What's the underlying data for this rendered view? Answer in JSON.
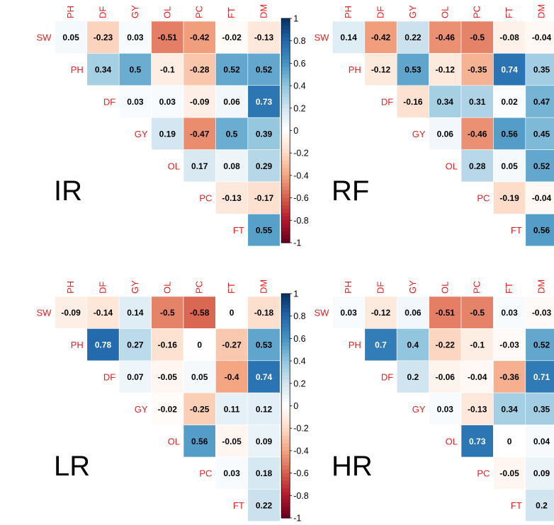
{
  "chart_data": [
    {
      "type": "heatmap",
      "title": "IR",
      "variables": [
        "SW",
        "PH",
        "DF",
        "GY",
        "OL",
        "PC",
        "FT",
        "DM"
      ],
      "rows": [
        "SW",
        "PH",
        "DF",
        "GY",
        "OL",
        "PC",
        "FT"
      ],
      "columns": [
        "PH",
        "DF",
        "GY",
        "OL",
        "PC",
        "FT",
        "DM"
      ],
      "values": [
        [
          0.05,
          -0.23,
          0.03,
          -0.51,
          -0.42,
          -0.02,
          -0.13
        ],
        [
          0.34,
          0.5,
          -0.1,
          -0.28,
          0.52,
          0.52
        ],
        [
          0.03,
          0.03,
          -0.09,
          0.06,
          0.73
        ],
        [
          0.19,
          -0.47,
          0.5,
          0.39
        ],
        [
          0.17,
          0.08,
          0.29
        ],
        [
          -0.13,
          -0.17
        ],
        [
          0.55
        ]
      ],
      "colorbar": {
        "range": [
          -1,
          1
        ],
        "ticks": [
          "1",
          "0.8",
          "0.6",
          "0.4",
          "0.2",
          "0",
          "-0.2",
          "-0.4",
          "-0.6",
          "-0.8",
          "-1"
        ]
      }
    },
    {
      "type": "heatmap",
      "title": "RF",
      "variables": [
        "SW",
        "PH",
        "DF",
        "GY",
        "OL",
        "PC",
        "FT",
        "DM"
      ],
      "rows": [
        "SW",
        "PH",
        "DF",
        "GY",
        "OL",
        "PC",
        "FT"
      ],
      "columns": [
        "PH",
        "DF",
        "GY",
        "OL",
        "PC",
        "FT",
        "DM"
      ],
      "values": [
        [
          0.14,
          -0.42,
          0.22,
          -0.46,
          -0.5,
          -0.08,
          -0.04
        ],
        [
          -0.12,
          0.53,
          -0.12,
          -0.35,
          0.74,
          0.35
        ],
        [
          -0.16,
          0.34,
          0.31,
          0.02,
          0.47
        ],
        [
          0.06,
          -0.46,
          0.56,
          0.45
        ],
        [
          0.28,
          0.05,
          0.52
        ],
        [
          -0.19,
          -0.04
        ],
        [
          0.56
        ]
      ],
      "colorbar": {
        "range": [
          -1,
          1
        ],
        "ticks": [
          "1",
          "0.8",
          "0.6",
          "0.4",
          "0.2",
          "0",
          "-0.2",
          "-0.4",
          "-0.6",
          "-0.8",
          "-1"
        ]
      }
    },
    {
      "type": "heatmap",
      "title": "LR",
      "variables": [
        "SW",
        "PH",
        "DF",
        "GY",
        "OL",
        "PC",
        "FT",
        "DM"
      ],
      "rows": [
        "SW",
        "PH",
        "DF",
        "GY",
        "OL",
        "PC",
        "FT"
      ],
      "columns": [
        "PH",
        "DF",
        "GY",
        "OL",
        "PC",
        "FT",
        "DM"
      ],
      "values": [
        [
          -0.09,
          -0.14,
          0.14,
          -0.5,
          -0.58,
          0,
          -0.18
        ],
        [
          0.78,
          0.27,
          -0.16,
          0,
          -0.27,
          0.53
        ],
        [
          0.07,
          -0.05,
          0.05,
          -0.4,
          0.74
        ],
        [
          -0.02,
          -0.25,
          0.11,
          0.12
        ],
        [
          0.56,
          -0.05,
          0.09
        ],
        [
          0.03,
          0.18
        ],
        [
          0.22
        ]
      ],
      "colorbar": {
        "range": [
          -1,
          1
        ],
        "ticks": [
          "1",
          "0.8",
          "0.6",
          "0.4",
          "0.2",
          "0",
          "-0.2",
          "-0.4",
          "-0.6",
          "-0.8",
          "-1"
        ]
      }
    },
    {
      "type": "heatmap",
      "title": "HR",
      "variables": [
        "SW",
        "PH",
        "DF",
        "GY",
        "OL",
        "PC",
        "FT",
        "DM"
      ],
      "rows": [
        "SW",
        "PH",
        "DF",
        "GY",
        "OL",
        "PC",
        "FT"
      ],
      "columns": [
        "PH",
        "DF",
        "GY",
        "OL",
        "PC",
        "FT",
        "DM"
      ],
      "values": [
        [
          0.03,
          -0.12,
          0.06,
          -0.51,
          -0.5,
          0.03,
          -0.03
        ],
        [
          0.7,
          0.4,
          -0.22,
          -0.1,
          -0.03,
          0.52
        ],
        [
          0.2,
          -0.06,
          -0.04,
          -0.36,
          0.71
        ],
        [
          0.03,
          -0.13,
          0.34,
          0.35
        ],
        [
          0.73,
          0,
          0.04
        ],
        [
          -0.05,
          0.09
        ],
        [
          0.2
        ]
      ],
      "colorbar": {
        "range": [
          -1,
          1
        ],
        "ticks": [
          "1",
          "0.8",
          "0.6",
          "0.4",
          "0.2",
          "0",
          "-0.2",
          "-0.4",
          "-0.6",
          "-0.8",
          "-1"
        ]
      }
    }
  ]
}
